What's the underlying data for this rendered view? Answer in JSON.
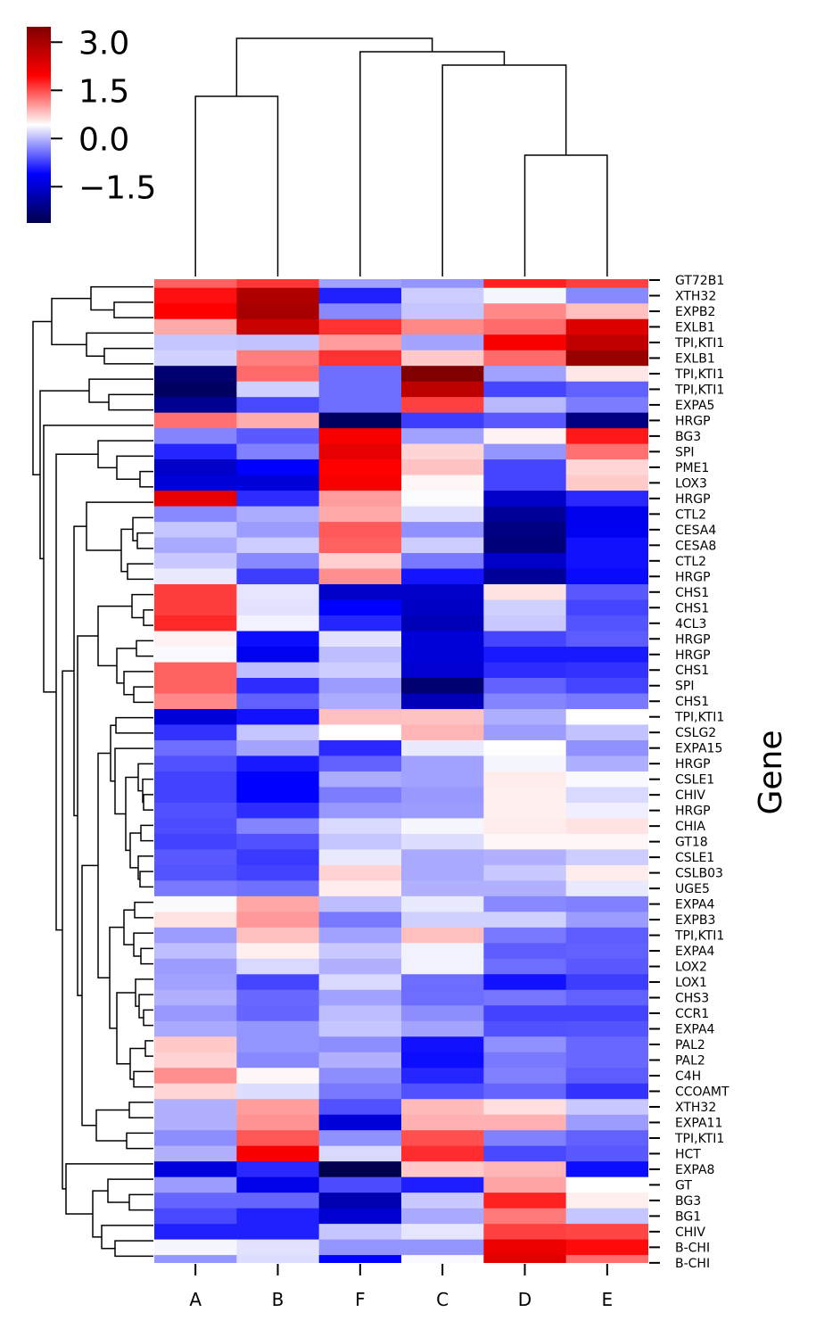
{
  "chart_data": {
    "type": "heatmap",
    "title": "",
    "xlabel": "",
    "ylabel": "Gene",
    "cmap": "seismic",
    "colorbar": {
      "range": [
        -2.63,
        3.48
      ],
      "ticks": [
        3.0,
        1.5,
        0.0,
        -1.5
      ],
      "tick_labels": [
        "3.0",
        "1.5",
        "0.0",
        "−1.5"
      ]
    },
    "columns": [
      "A",
      "B",
      "F",
      "C",
      "D",
      "E"
    ],
    "rows": [
      "GT72B1",
      "XTH32",
      "EXPB2",
      "EXLB1",
      "TPI,KTI1",
      "EXLB1",
      "TPI,KTI1",
      "TPI,KTI1",
      "EXPA5",
      "HRGP",
      "BG3",
      "SPI",
      "PME1",
      "LOX3",
      "HRGP",
      "CTL2",
      "CESA4",
      "CESA8",
      "CTL2",
      "HRGP",
      "CHS1",
      "CHS1",
      "4CL3",
      "HRGP",
      "HRGP",
      "CHS1",
      "SPI",
      "CHS1",
      "TPI,KTI1",
      "CSLG2",
      "EXPA15",
      "HRGP",
      "CSLE1",
      "CHIV",
      "HRGP",
      "CHIA",
      "GT18",
      "CSLE1",
      "CSLB03",
      "UGE5",
      "EXPA4",
      "EXPB3",
      "TPI,KTI1",
      "EXPA4",
      "LOX2",
      "LOX1",
      "CHS3",
      "CCR1",
      "EXPA4",
      "PAL2",
      "PAL2",
      "C4H",
      "CCOAMT",
      "XTH32",
      "EXPA11",
      "TPI,KTI1",
      "HCT",
      "EXPA8",
      "GT",
      "BG3",
      "BG1",
      "CHIV",
      "B-CHI",
      "B-CHI"
    ],
    "values": [
      [
        1.37,
        1.63,
        -0.14,
        -0.21,
        1.76,
        1.57
      ],
      [
        1.86,
        2.9,
        -0.91,
        0.12,
        0.37,
        -0.29
      ],
      [
        1.95,
        3.0,
        -0.29,
        0.08,
        1.14,
        0.81
      ],
      [
        0.94,
        2.61,
        1.66,
        1.14,
        1.32,
        2.36
      ],
      [
        0.08,
        0.06,
        1.02,
        -0.12,
        2.02,
        2.71
      ],
      [
        0.15,
        1.19,
        1.66,
        0.75,
        1.32,
        3.19
      ],
      [
        -2.33,
        1.32,
        -0.45,
        3.48,
        -0.14,
        0.57
      ],
      [
        -2.47,
        0.15,
        -0.45,
        2.76,
        -0.69,
        -0.52
      ],
      [
        -2.05,
        -0.67,
        -0.45,
        1.57,
        0.0,
        -0.36
      ],
      [
        1.28,
        0.92,
        -2.47,
        -0.74,
        -0.57,
        -2.19
      ],
      [
        -0.31,
        -0.57,
        2.03,
        -0.14,
        0.5,
        1.81
      ],
      [
        -0.88,
        -0.33,
        2.25,
        0.68,
        -0.21,
        1.28
      ],
      [
        -1.57,
        -1.1,
        1.95,
        0.79,
        -0.69,
        0.67
      ],
      [
        -1.44,
        -1.44,
        2.03,
        0.47,
        -0.69,
        0.74
      ],
      [
        2.25,
        -0.84,
        1.02,
        0.41,
        -1.57,
        -0.86
      ],
      [
        -0.29,
        -0.08,
        0.94,
        0.22,
        -1.99,
        -1.25
      ],
      [
        0.08,
        -0.17,
        1.42,
        -0.24,
        -2.19,
        -1.22
      ],
      [
        -0.09,
        0.12,
        1.37,
        0.12,
        -2.26,
        -1.0
      ],
      [
        0.1,
        -0.29,
        0.72,
        -0.38,
        -1.57,
        -1.0
      ],
      [
        0.3,
        -0.74,
        1.1,
        -0.98,
        -1.99,
        -1.05
      ],
      [
        1.59,
        0.27,
        -1.57,
        -1.57,
        0.59,
        -0.57
      ],
      [
        1.59,
        0.25,
        -1.1,
        -1.6,
        0.15,
        -0.69
      ],
      [
        1.71,
        0.35,
        -0.88,
        -1.71,
        0.1,
        -0.6
      ],
      [
        0.5,
        -1.03,
        0.25,
        -1.44,
        -0.69,
        -0.55
      ],
      [
        0.39,
        -1.22,
        0.03,
        -1.44,
        -0.95,
        -0.95
      ],
      [
        1.38,
        0.03,
        0.12,
        -1.5,
        -0.84,
        -0.8
      ],
      [
        1.38,
        -0.84,
        -0.17,
        -2.33,
        -0.52,
        -0.69
      ],
      [
        1.14,
        -0.52,
        -0.08,
        -1.71,
        -0.31,
        -0.38
      ],
      [
        -1.44,
        -1.0,
        0.81,
        0.79,
        -0.06,
        0.43
      ],
      [
        -0.8,
        0.08,
        0.43,
        0.87,
        -0.17,
        0.06
      ],
      [
        -0.45,
        -0.12,
        -0.86,
        0.3,
        0.43,
        -0.24
      ],
      [
        -0.62,
        -0.95,
        -0.52,
        -0.14,
        0.37,
        -0.06
      ],
      [
        -0.71,
        -1.1,
        -0.08,
        -0.14,
        0.54,
        0.39
      ],
      [
        -0.71,
        -1.1,
        -0.36,
        -0.19,
        0.52,
        0.2
      ],
      [
        -0.62,
        -0.84,
        -0.19,
        -0.17,
        0.52,
        0.33
      ],
      [
        -0.64,
        -0.31,
        0.2,
        0.37,
        0.54,
        0.59
      ],
      [
        -0.71,
        -0.62,
        0.08,
        0.22,
        0.47,
        0.47
      ],
      [
        -0.57,
        -0.76,
        0.3,
        -0.09,
        -0.05,
        0.12
      ],
      [
        -0.6,
        -0.71,
        0.69,
        -0.09,
        0.1,
        0.54
      ],
      [
        -0.38,
        -0.43,
        0.54,
        -0.05,
        -0.05,
        0.3
      ],
      [
        0.4,
        0.95,
        0.03,
        0.3,
        -0.29,
        -0.33
      ],
      [
        0.59,
        1.04,
        -0.38,
        0.15,
        0.15,
        -0.17
      ],
      [
        -0.17,
        0.81,
        -0.14,
        0.81,
        -0.38,
        -0.55
      ],
      [
        0.03,
        0.52,
        0.1,
        0.35,
        -0.55,
        -0.52
      ],
      [
        -0.17,
        0.2,
        -0.05,
        0.35,
        -0.45,
        -0.57
      ],
      [
        -0.14,
        -0.69,
        0.2,
        -0.45,
        -1.0,
        -0.74
      ],
      [
        -0.05,
        -0.48,
        -0.14,
        -0.45,
        -0.4,
        -0.52
      ],
      [
        -0.19,
        -0.5,
        0.03,
        -0.26,
        -0.71,
        -0.71
      ],
      [
        -0.09,
        -0.21,
        0.08,
        -0.12,
        -0.62,
        -0.6
      ],
      [
        0.75,
        -0.21,
        -0.26,
        -1.0,
        -0.24,
        -0.48
      ],
      [
        0.69,
        -0.29,
        -0.05,
        -1.03,
        -0.38,
        -0.48
      ],
      [
        1.1,
        0.47,
        -0.26,
        -0.88,
        -0.33,
        -0.55
      ],
      [
        0.67,
        0.22,
        -0.38,
        -0.62,
        -0.5,
        -0.8
      ],
      [
        -0.05,
        1.02,
        -0.62,
        0.84,
        0.62,
        0.1
      ],
      [
        -0.05,
        1.08,
        -1.44,
        0.9,
        0.9,
        -0.17
      ],
      [
        -0.26,
        1.44,
        -0.24,
        1.48,
        -0.33,
        -0.52
      ],
      [
        -0.05,
        2.03,
        0.2,
        1.68,
        -0.67,
        -0.57
      ],
      [
        -1.4,
        -0.86,
        -2.63,
        0.75,
        0.87,
        -1.03
      ],
      [
        -0.17,
        -1.29,
        -0.64,
        -0.93,
        0.97,
        0.43
      ],
      [
        -0.5,
        -0.5,
        -1.78,
        0.1,
        1.76,
        0.52
      ],
      [
        -0.67,
        -0.91,
        -1.5,
        -0.09,
        1.22,
        0.08
      ],
      [
        -0.91,
        -0.91,
        0.08,
        0.27,
        1.57,
        1.54
      ],
      [
        0.37,
        0.25,
        -0.21,
        -0.21,
        2.18,
        1.89
      ],
      [
        -0.21,
        0.22,
        -1.1,
        0.39,
        2.31,
        1.3
      ]
    ],
    "dendrograms": {
      "rows": true,
      "columns": true
    },
    "grid": false,
    "colorbar_placement": "top-left"
  }
}
